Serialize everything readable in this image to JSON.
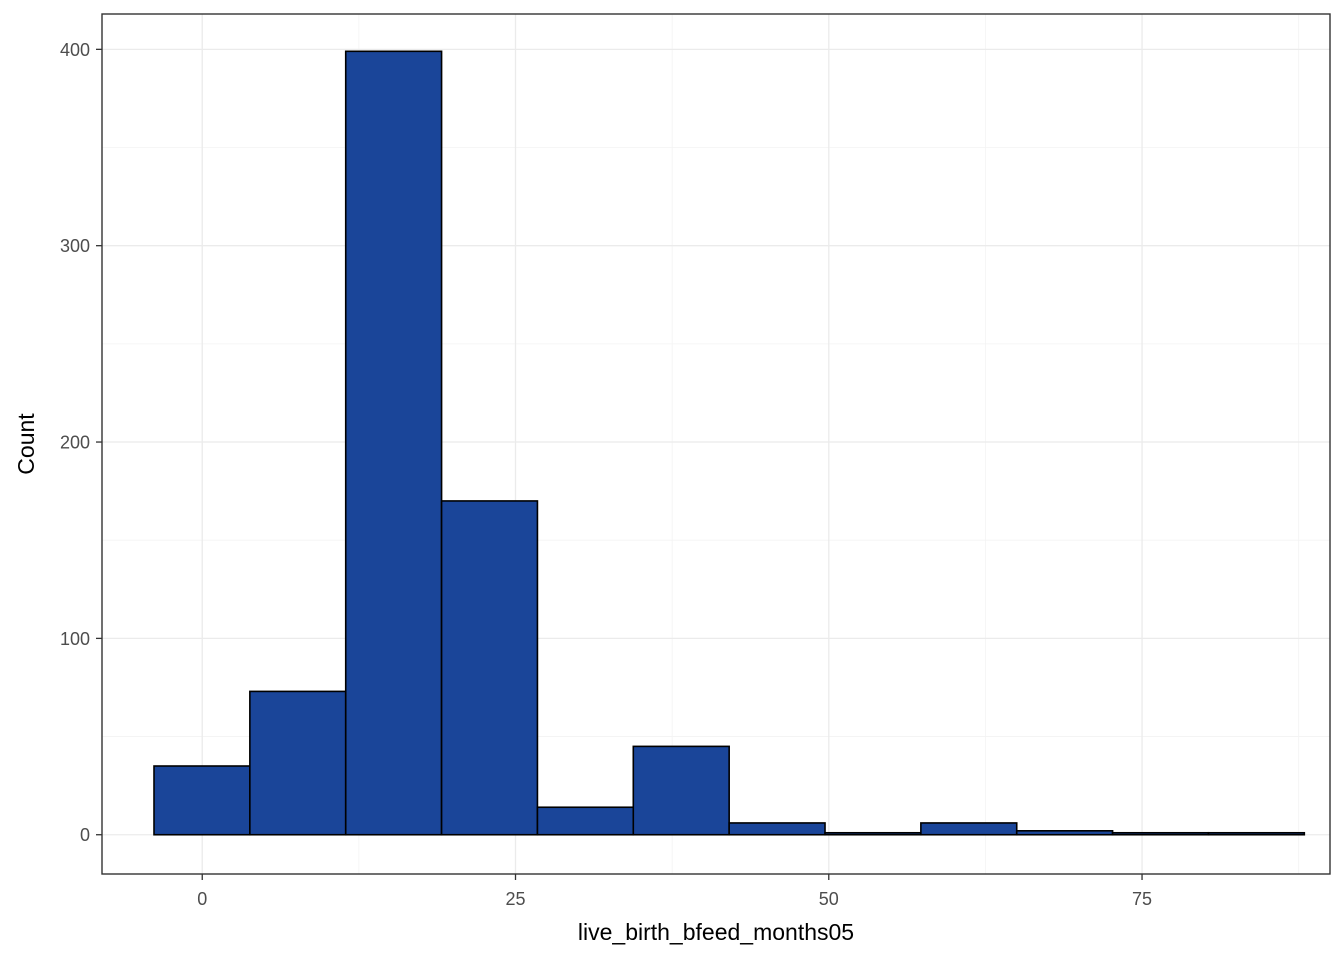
{
  "chart_data": {
    "type": "bar",
    "subtype": "histogram",
    "xlabel": "live_birth_bfeed_months05",
    "ylabel": "Count",
    "xlim": [
      -8,
      90
    ],
    "ylim": [
      -20,
      418
    ],
    "xticks": [
      0,
      25,
      50,
      75
    ],
    "yticks": [
      0,
      100,
      200,
      300,
      400
    ],
    "grid": true,
    "fill_color": "#1A4599",
    "edge_color": "#000000",
    "bins": [
      {
        "x0": -3.85,
        "x1": 3.8,
        "count": 35
      },
      {
        "x0": 3.8,
        "x1": 11.45,
        "count": 73
      },
      {
        "x0": 11.45,
        "x1": 19.1,
        "count": 399
      },
      {
        "x0": 19.1,
        "x1": 26.75,
        "count": 170
      },
      {
        "x0": 26.75,
        "x1": 34.4,
        "count": 14
      },
      {
        "x0": 34.4,
        "x1": 42.05,
        "count": 45
      },
      {
        "x0": 42.05,
        "x1": 49.7,
        "count": 6
      },
      {
        "x0": 49.7,
        "x1": 57.35,
        "count": 1
      },
      {
        "x0": 57.35,
        "x1": 65.0,
        "count": 6
      },
      {
        "x0": 65.0,
        "x1": 72.65,
        "count": 2
      },
      {
        "x0": 72.65,
        "x1": 80.3,
        "count": 1
      },
      {
        "x0": 80.3,
        "x1": 87.95,
        "count": 1
      }
    ]
  }
}
